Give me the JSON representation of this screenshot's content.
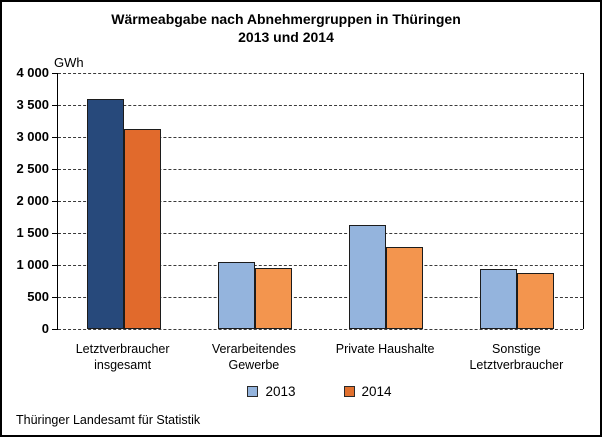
{
  "title": {
    "line1": "Wärmeabgabe nach Abnehmergruppen in Thüringen",
    "line2": "2013 und 2014"
  },
  "axis_unit_label": "GWh",
  "source_text": "Thüringer Landesamt für Statistik",
  "colors": {
    "bar_2013_highlight": "#27497B",
    "bar_2014_highlight": "#E16A2C",
    "bar_2013_default": "#94B4DD",
    "bar_2014_default": "#F3954E",
    "legend_2013_swatch": "#94B4DD",
    "legend_2014_swatch": "#E1702E",
    "grid": "#3a3a3a"
  },
  "chart_data": {
    "type": "bar",
    "title": "Wärmeabgabe nach Abnehmergruppen in Thüringen 2013 und 2014",
    "xlabel": "",
    "ylabel": "GWh",
    "ylim": [
      0,
      4000
    ],
    "ytick_step": 500,
    "ytick_labels": [
      "0",
      "500",
      "1 000",
      "1 500",
      "2 000",
      "2 500",
      "3 000",
      "3 500",
      "4 000"
    ],
    "grid": "horizontal-dashed",
    "legend_position": "bottom-center",
    "categories": [
      "Letztverbraucher insgesamt",
      "Verarbeitendes Gewerbe",
      "Private Haushalte",
      "Sonstige Letztverbraucher"
    ],
    "category_label_lines": [
      [
        "Letztverbraucher",
        "insgesamt"
      ],
      [
        "Verarbeitendes",
        "Gewerbe"
      ],
      [
        "Private Haushalte"
      ],
      [
        "Sonstige",
        "Letztverbraucher"
      ]
    ],
    "series": [
      {
        "name": "2013",
        "values": [
          3600,
          1040,
          1620,
          930
        ]
      },
      {
        "name": "2014",
        "values": [
          3130,
          960,
          1280,
          880
        ]
      }
    ],
    "note": "first category (Letztverbraucher insgesamt) drawn in darker highlight colors"
  },
  "legend": {
    "items": [
      {
        "label": "2013"
      },
      {
        "label": "2014"
      }
    ]
  }
}
